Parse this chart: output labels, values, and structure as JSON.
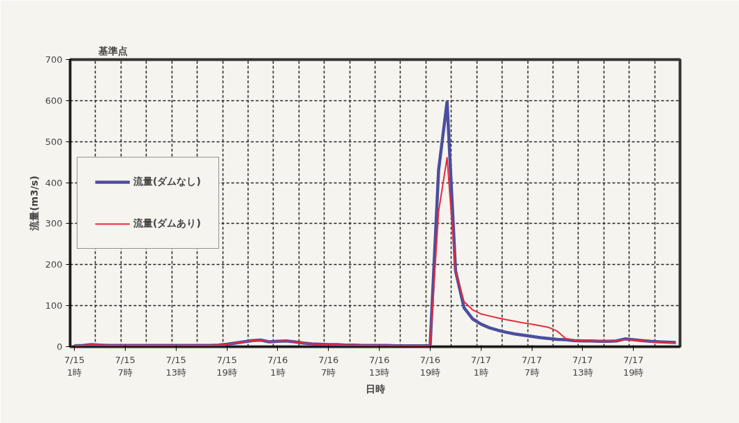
{
  "chart_data": {
    "type": "line",
    "title": "基準点",
    "xlabel": "日時",
    "ylabel": "流量(m3/s)",
    "categories": [
      "7/15\n1時",
      null,
      null,
      null,
      null,
      null,
      "7/15\n7時",
      null,
      null,
      null,
      null,
      null,
      "7/15\n13時",
      null,
      null,
      null,
      null,
      null,
      "7/15\n19時",
      null,
      null,
      null,
      null,
      null,
      "7/16\n1時",
      null,
      null,
      null,
      null,
      null,
      "7/16\n7時",
      null,
      null,
      null,
      null,
      null,
      "7/16\n13時",
      null,
      null,
      null,
      null,
      null,
      "7/16\n19時",
      null,
      null,
      null,
      null,
      null,
      "7/17\n1時",
      null,
      null,
      null,
      null,
      null,
      "7/17\n7時",
      null,
      null,
      null,
      null,
      null,
      "7/17\n13時",
      null,
      null,
      null,
      null,
      null,
      "7/17\n19時",
      null,
      null,
      null,
      null,
      null
    ],
    "series": [
      {
        "name": "流量(ダムなし)",
        "color": "#4b4f9e",
        "values": [
          2,
          3,
          5,
          4,
          3,
          3,
          3,
          3,
          3,
          3,
          3,
          3,
          3,
          3,
          3,
          3,
          3,
          4,
          6,
          9,
          12,
          15,
          16,
          12,
          13,
          14,
          12,
          9,
          7,
          6,
          5,
          5,
          4,
          4,
          3,
          3,
          3,
          3,
          2,
          2,
          2,
          2,
          2,
          431,
          597,
          185,
          95,
          68,
          55,
          46,
          40,
          35,
          31,
          28,
          25,
          22,
          20,
          18,
          17,
          15,
          14,
          14,
          13,
          13,
          14,
          19,
          17,
          15,
          13,
          12,
          11,
          10
        ]
      },
      {
        "name": "流量(ダムあり)",
        "color": "#e8283c",
        "values": [
          2,
          3,
          5,
          4,
          3,
          3,
          3,
          3,
          3,
          3,
          3,
          3,
          3,
          3,
          3,
          3,
          3,
          4,
          6,
          9,
          12,
          15,
          16,
          12,
          13,
          14,
          12,
          9,
          7,
          6,
          5,
          5,
          4,
          4,
          3,
          3,
          3,
          3,
          2,
          2,
          2,
          2,
          2,
          330,
          461,
          185,
          110,
          90,
          80,
          75,
          70,
          66,
          62,
          58,
          55,
          51,
          47,
          38,
          20,
          16,
          14,
          14,
          13,
          13,
          14,
          18,
          16,
          14,
          12,
          11,
          10,
          9
        ]
      }
    ],
    "ylim": [
      0,
      700
    ],
    "yticks": [
      0,
      100,
      200,
      300,
      400,
      500,
      600,
      700
    ],
    "grid": true,
    "legend": "left",
    "marker": "none",
    "line_style": "solid"
  }
}
